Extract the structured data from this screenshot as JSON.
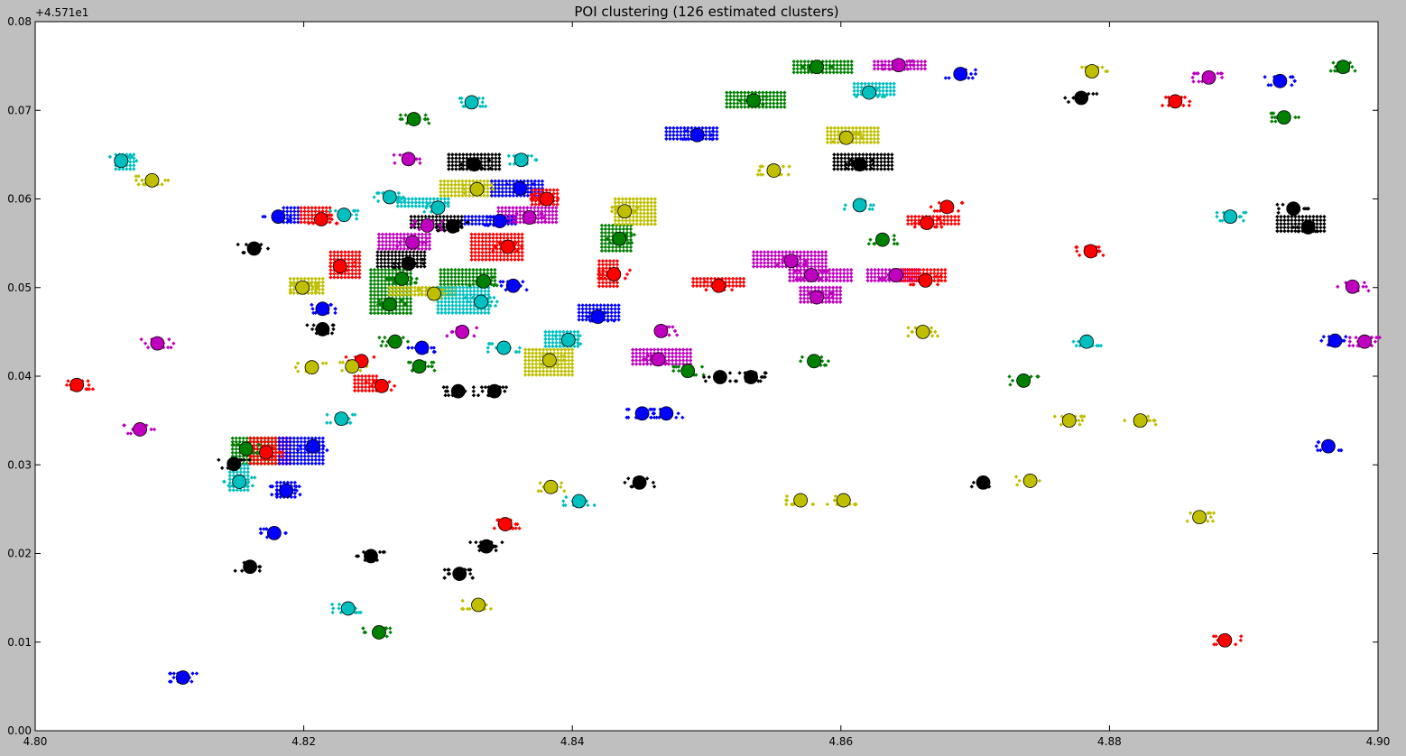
{
  "chart_data": {
    "type": "scatter",
    "title": "POI clustering (126 estimated clusters)",
    "xlabel": "",
    "ylabel": "",
    "y_offset_label": "+4.571e1",
    "xlim": [
      4.8,
      4.9
    ],
    "ylim": [
      0.0,
      0.08
    ],
    "x_ticks": [
      4.8,
      4.82,
      4.84,
      4.86,
      4.88,
      4.9
    ],
    "x_tick_labels": [
      "4.80",
      "4.82",
      "4.84",
      "4.86",
      "4.88",
      "4.90"
    ],
    "y_ticks": [
      0.0,
      0.01,
      0.02,
      0.03,
      0.04,
      0.05,
      0.06,
      0.07,
      0.08
    ],
    "y_tick_labels": [
      "0.00",
      "0.01",
      "0.02",
      "0.03",
      "0.04",
      "0.05",
      "0.06",
      "0.07",
      "0.08"
    ],
    "grid": false,
    "legend": "none",
    "colors": {
      "b": "#0000ff",
      "g": "#008000",
      "r": "#ff0000",
      "c": "#00bfbf",
      "m": "#bf00bf",
      "y": "#bfbf00",
      "k": "#000000"
    },
    "centers": [
      {
        "x": 4.8031,
        "y": 0.039,
        "c": "r"
      },
      {
        "x": 4.8064,
        "y": 0.0643,
        "c": "c"
      },
      {
        "x": 4.8078,
        "y": 0.034,
        "c": "m"
      },
      {
        "x": 4.8087,
        "y": 0.0621,
        "c": "y"
      },
      {
        "x": 4.8091,
        "y": 0.0437,
        "c": "m"
      },
      {
        "x": 4.811,
        "y": 0.006,
        "c": "b"
      },
      {
        "x": 4.8148,
        "y": 0.0301,
        "c": "k"
      },
      {
        "x": 4.8152,
        "y": 0.0281,
        "c": "c"
      },
      {
        "x": 4.8157,
        "y": 0.0318,
        "c": "g"
      },
      {
        "x": 4.816,
        "y": 0.0185,
        "c": "k"
      },
      {
        "x": 4.8163,
        "y": 0.0544,
        "c": "k"
      },
      {
        "x": 4.8172,
        "y": 0.0314,
        "c": "r"
      },
      {
        "x": 4.8178,
        "y": 0.0223,
        "c": "b"
      },
      {
        "x": 4.8187,
        "y": 0.0271,
        "c": "b"
      },
      {
        "x": 4.8181,
        "y": 0.058,
        "c": "b"
      },
      {
        "x": 4.8199,
        "y": 0.05,
        "c": "y"
      },
      {
        "x": 4.8207,
        "y": 0.0321,
        "c": "b"
      },
      {
        "x": 4.8206,
        "y": 0.041,
        "c": "y"
      },
      {
        "x": 4.8214,
        "y": 0.0453,
        "c": "k"
      },
      {
        "x": 4.8214,
        "y": 0.0476,
        "c": "b"
      },
      {
        "x": 4.8213,
        "y": 0.0577,
        "c": "r"
      },
      {
        "x": 4.8227,
        "y": 0.0524,
        "c": "r"
      },
      {
        "x": 4.8228,
        "y": 0.0352,
        "c": "c"
      },
      {
        "x": 4.823,
        "y": 0.0582,
        "c": "c"
      },
      {
        "x": 4.8233,
        "y": 0.0138,
        "c": "c"
      },
      {
        "x": 4.8243,
        "y": 0.0417,
        "c": "r"
      },
      {
        "x": 4.825,
        "y": 0.0197,
        "c": "k"
      },
      {
        "x": 4.8256,
        "y": 0.0111,
        "c": "g"
      },
      {
        "x": 4.8258,
        "y": 0.0389,
        "c": "r"
      },
      {
        "x": 4.8264,
        "y": 0.0481,
        "c": "g"
      },
      {
        "x": 4.8264,
        "y": 0.0602,
        "c": "c"
      },
      {
        "x": 4.8268,
        "y": 0.0439,
        "c": "g"
      },
      {
        "x": 4.8273,
        "y": 0.051,
        "c": "g"
      },
      {
        "x": 4.8278,
        "y": 0.0527,
        "c": "k"
      },
      {
        "x": 4.8278,
        "y": 0.0645,
        "c": "m"
      },
      {
        "x": 4.8281,
        "y": 0.0551,
        "c": "m"
      },
      {
        "x": 4.8282,
        "y": 0.069,
        "c": "g"
      },
      {
        "x": 4.8286,
        "y": 0.0411,
        "c": "g"
      },
      {
        "x": 4.8288,
        "y": 0.0432,
        "c": "b"
      },
      {
        "x": 4.8292,
        "y": 0.057,
        "c": "m"
      },
      {
        "x": 4.8297,
        "y": 0.0493,
        "c": "y"
      },
      {
        "x": 4.83,
        "y": 0.059,
        "c": "c"
      },
      {
        "x": 4.8311,
        "y": 0.0569,
        "c": "k"
      },
      {
        "x": 4.8316,
        "y": 0.0177,
        "c": "k"
      },
      {
        "x": 4.8318,
        "y": 0.045,
        "c": "m"
      },
      {
        "x": 4.8325,
        "y": 0.0709,
        "c": "c"
      },
      {
        "x": 4.8327,
        "y": 0.0639,
        "c": "k"
      },
      {
        "x": 4.8329,
        "y": 0.0611,
        "c": "y"
      },
      {
        "x": 4.833,
        "y": 0.0142,
        "c": "y"
      },
      {
        "x": 4.8332,
        "y": 0.0484,
        "c": "c"
      },
      {
        "x": 4.8334,
        "y": 0.0507,
        "c": "g"
      },
      {
        "x": 4.8336,
        "y": 0.0208,
        "c": "k"
      },
      {
        "x": 4.8342,
        "y": 0.0383,
        "c": "k"
      },
      {
        "x": 4.8346,
        "y": 0.0575,
        "c": "b"
      },
      {
        "x": 4.8349,
        "y": 0.0432,
        "c": "c"
      },
      {
        "x": 4.835,
        "y": 0.0233,
        "c": "r"
      },
      {
        "x": 4.8352,
        "y": 0.0546,
        "c": "r"
      },
      {
        "x": 4.8356,
        "y": 0.0502,
        "c": "b"
      },
      {
        "x": 4.8361,
        "y": 0.0612,
        "c": "b"
      },
      {
        "x": 4.8362,
        "y": 0.0644,
        "c": "c"
      },
      {
        "x": 4.8368,
        "y": 0.0579,
        "c": "m"
      },
      {
        "x": 4.8381,
        "y": 0.06,
        "c": "r"
      },
      {
        "x": 4.8383,
        "y": 0.0418,
        "c": "y"
      },
      {
        "x": 4.8384,
        "y": 0.0275,
        "c": "y"
      },
      {
        "x": 4.8397,
        "y": 0.0441,
        "c": "c"
      },
      {
        "x": 4.8405,
        "y": 0.0259,
        "c": "c"
      },
      {
        "x": 4.8419,
        "y": 0.0467,
        "c": "b"
      },
      {
        "x": 4.8431,
        "y": 0.0515,
        "c": "r"
      },
      {
        "x": 4.8435,
        "y": 0.0555,
        "c": "g"
      },
      {
        "x": 4.8439,
        "y": 0.0586,
        "c": "y"
      },
      {
        "x": 4.8452,
        "y": 0.0358,
        "c": "b"
      },
      {
        "x": 4.8464,
        "y": 0.0419,
        "c": "m"
      },
      {
        "x": 4.8466,
        "y": 0.0451,
        "c": "m"
      },
      {
        "x": 4.8486,
        "y": 0.0406,
        "c": "g"
      },
      {
        "x": 4.8493,
        "y": 0.0672,
        "c": "b"
      },
      {
        "x": 4.8509,
        "y": 0.0502,
        "c": "r"
      },
      {
        "x": 4.8533,
        "y": 0.0399,
        "c": "k"
      },
      {
        "x": 4.8535,
        "y": 0.0711,
        "c": "g"
      },
      {
        "x": 4.855,
        "y": 0.0632,
        "c": "y"
      },
      {
        "x": 4.8563,
        "y": 0.053,
        "c": "m"
      },
      {
        "x": 4.8578,
        "y": 0.0514,
        "c": "m"
      },
      {
        "x": 4.858,
        "y": 0.0417,
        "c": "g"
      },
      {
        "x": 4.8582,
        "y": 0.0489,
        "c": "m"
      },
      {
        "x": 4.8582,
        "y": 0.0749,
        "c": "g"
      },
      {
        "x": 4.8602,
        "y": 0.026,
        "c": "y"
      },
      {
        "x": 4.8604,
        "y": 0.0669,
        "c": "y"
      },
      {
        "x": 4.8614,
        "y": 0.0639,
        "c": "k"
      },
      {
        "x": 4.8614,
        "y": 0.0593,
        "c": "c"
      },
      {
        "x": 4.8621,
        "y": 0.072,
        "c": "c"
      },
      {
        "x": 4.8631,
        "y": 0.0554,
        "c": "g"
      },
      {
        "x": 4.8641,
        "y": 0.0514,
        "c": "m"
      },
      {
        "x": 4.8643,
        "y": 0.0751,
        "c": "m"
      },
      {
        "x": 4.8661,
        "y": 0.045,
        "c": "y"
      },
      {
        "x": 4.8663,
        "y": 0.0508,
        "c": "r"
      },
      {
        "x": 4.8664,
        "y": 0.0573,
        "c": "r"
      },
      {
        "x": 4.8679,
        "y": 0.0591,
        "c": "r"
      },
      {
        "x": 4.8689,
        "y": 0.0741,
        "c": "b"
      },
      {
        "x": 4.8706,
        "y": 0.028,
        "c": "k"
      },
      {
        "x": 4.8741,
        "y": 0.0282,
        "c": "y"
      },
      {
        "x": 4.8736,
        "y": 0.0395,
        "c": "g"
      },
      {
        "x": 4.8779,
        "y": 0.0714,
        "c": "k"
      },
      {
        "x": 4.8783,
        "y": 0.0439,
        "c": "c"
      },
      {
        "x": 4.8786,
        "y": 0.0541,
        "c": "r"
      },
      {
        "x": 4.8787,
        "y": 0.0744,
        "c": "y"
      },
      {
        "x": 4.8823,
        "y": 0.035,
        "c": "y"
      },
      {
        "x": 4.8849,
        "y": 0.071,
        "c": "r"
      },
      {
        "x": 4.8867,
        "y": 0.0241,
        "c": "y"
      },
      {
        "x": 4.8874,
        "y": 0.0737,
        "c": "m"
      },
      {
        "x": 4.8886,
        "y": 0.0102,
        "c": "r"
      },
      {
        "x": 4.889,
        "y": 0.058,
        "c": "c"
      },
      {
        "x": 4.8927,
        "y": 0.0733,
        "c": "b"
      },
      {
        "x": 4.893,
        "y": 0.0692,
        "c": "g"
      },
      {
        "x": 4.8937,
        "y": 0.0589,
        "c": "k"
      },
      {
        "x": 4.8948,
        "y": 0.0568,
        "c": "k"
      },
      {
        "x": 4.8963,
        "y": 0.0321,
        "c": "b"
      },
      {
        "x": 4.8974,
        "y": 0.0749,
        "c": "g"
      },
      {
        "x": 4.8981,
        "y": 0.0501,
        "c": "m"
      },
      {
        "x": 4.8968,
        "y": 0.044,
        "c": "b"
      },
      {
        "x": 4.899,
        "y": 0.0439,
        "c": "m"
      },
      {
        "x": 4.8236,
        "y": 0.0411,
        "c": "y"
      },
      {
        "x": 4.8315,
        "y": 0.0383,
        "c": "k"
      },
      {
        "x": 4.847,
        "y": 0.0358,
        "c": "b"
      },
      {
        "x": 4.851,
        "y": 0.0399,
        "c": "k"
      },
      {
        "x": 4.857,
        "y": 0.026,
        "c": "y"
      },
      {
        "x": 4.845,
        "y": 0.028,
        "c": "k"
      },
      {
        "x": 4.877,
        "y": 0.035,
        "c": "y"
      }
    ],
    "bands": [
      {
        "x0": 4.806,
        "x1": 4.8076,
        "y0": 0.063,
        "y1": 0.065,
        "c": "c"
      },
      {
        "x0": 4.8147,
        "x1": 4.818,
        "y0": 0.03,
        "y1": 0.033,
        "c": "g"
      },
      {
        "x0": 4.8145,
        "x1": 4.816,
        "y0": 0.027,
        "y1": 0.03,
        "c": "c"
      },
      {
        "x0": 4.816,
        "x1": 4.819,
        "y0": 0.03,
        "y1": 0.033,
        "c": "r"
      },
      {
        "x0": 4.8182,
        "x1": 4.8216,
        "y0": 0.03,
        "y1": 0.033,
        "c": "b"
      },
      {
        "x0": 4.818,
        "x1": 4.8196,
        "y0": 0.026,
        "y1": 0.028,
        "c": "b"
      },
      {
        "x0": 4.8185,
        "x1": 4.8198,
        "y0": 0.057,
        "y1": 0.059,
        "c": "b"
      },
      {
        "x0": 4.819,
        "x1": 4.8215,
        "y0": 0.049,
        "y1": 0.051,
        "c": "y"
      },
      {
        "x0": 4.822,
        "x1": 4.8242,
        "y0": 0.051,
        "y1": 0.054,
        "c": "r"
      },
      {
        "x0": 4.8198,
        "x1": 4.8222,
        "y0": 0.057,
        "y1": 0.059,
        "c": "r"
      },
      {
        "x0": 4.8238,
        "x1": 4.8256,
        "y0": 0.038,
        "y1": 0.04,
        "c": "r"
      },
      {
        "x0": 4.825,
        "x1": 4.8282,
        "y0": 0.047,
        "y1": 0.052,
        "c": "g"
      },
      {
        "x0": 4.8255,
        "x1": 4.829,
        "y0": 0.052,
        "y1": 0.054,
        "c": "k"
      },
      {
        "x0": 4.8256,
        "x1": 4.8294,
        "y0": 0.054,
        "y1": 0.056,
        "c": "m"
      },
      {
        "x0": 4.8264,
        "x1": 4.8314,
        "y0": 0.049,
        "y1": 0.05,
        "c": "y"
      },
      {
        "x0": 4.827,
        "x1": 4.8308,
        "y0": 0.059,
        "y1": 0.06,
        "c": "c"
      },
      {
        "x0": 4.828,
        "x1": 4.832,
        "y0": 0.0565,
        "y1": 0.058,
        "c": "k"
      },
      {
        "x0": 4.83,
        "x1": 4.834,
        "y0": 0.047,
        "y1": 0.05,
        "c": "c"
      },
      {
        "x0": 4.8302,
        "x1": 4.8345,
        "y0": 0.05,
        "y1": 0.052,
        "c": "g"
      },
      {
        "x0": 4.8302,
        "x1": 4.835,
        "y0": 0.06,
        "y1": 0.062,
        "c": "y"
      },
      {
        "x0": 4.8308,
        "x1": 4.8348,
        "y0": 0.063,
        "y1": 0.065,
        "c": "k"
      },
      {
        "x0": 4.832,
        "x1": 4.836,
        "y0": 0.057,
        "y1": 0.058,
        "c": "b"
      },
      {
        "x0": 4.8325,
        "x1": 4.8365,
        "y0": 0.053,
        "y1": 0.056,
        "c": "r"
      },
      {
        "x0": 4.834,
        "x1": 4.838,
        "y0": 0.06,
        "y1": 0.062,
        "c": "b"
      },
      {
        "x0": 4.8345,
        "x1": 4.839,
        "y0": 0.057,
        "y1": 0.059,
        "c": "m"
      },
      {
        "x0": 4.837,
        "x1": 4.839,
        "y0": 0.059,
        "y1": 0.061,
        "c": "r"
      },
      {
        "x0": 4.8365,
        "x1": 4.84,
        "y0": 0.04,
        "y1": 0.043,
        "c": "y"
      },
      {
        "x0": 4.838,
        "x1": 4.8405,
        "y0": 0.043,
        "y1": 0.045,
        "c": "c"
      },
      {
        "x0": 4.8405,
        "x1": 4.8435,
        "y0": 0.046,
        "y1": 0.048,
        "c": "b"
      },
      {
        "x0": 4.842,
        "x1": 4.8436,
        "y0": 0.05,
        "y1": 0.053,
        "c": "r"
      },
      {
        "x0": 4.8422,
        "x1": 4.8444,
        "y0": 0.054,
        "y1": 0.057,
        "c": "g"
      },
      {
        "x0": 4.8432,
        "x1": 4.8462,
        "y0": 0.057,
        "y1": 0.06,
        "c": "y"
      },
      {
        "x0": 4.8445,
        "x1": 4.849,
        "y0": 0.041,
        "y1": 0.043,
        "c": "m"
      },
      {
        "x0": 4.847,
        "x1": 4.851,
        "y0": 0.0665,
        "y1": 0.068,
        "c": "b"
      },
      {
        "x0": 4.849,
        "x1": 4.853,
        "y0": 0.05,
        "y1": 0.051,
        "c": "r"
      },
      {
        "x0": 4.8515,
        "x1": 4.856,
        "y0": 0.07,
        "y1": 0.072,
        "c": "g"
      },
      {
        "x0": 4.8535,
        "x1": 4.859,
        "y0": 0.052,
        "y1": 0.054,
        "c": "m"
      },
      {
        "x0": 4.8562,
        "x1": 4.861,
        "y0": 0.0505,
        "y1": 0.052,
        "c": "m"
      },
      {
        "x0": 4.857,
        "x1": 4.86,
        "y0": 0.048,
        "y1": 0.05,
        "c": "m"
      },
      {
        "x0": 4.8565,
        "x1": 4.861,
        "y0": 0.074,
        "y1": 0.0755,
        "c": "g"
      },
      {
        "x0": 4.859,
        "x1": 4.863,
        "y0": 0.066,
        "y1": 0.068,
        "c": "y"
      },
      {
        "x0": 4.8595,
        "x1": 4.864,
        "y0": 0.063,
        "y1": 0.065,
        "c": "k"
      },
      {
        "x0": 4.861,
        "x1": 4.864,
        "y0": 0.0715,
        "y1": 0.073,
        "c": "c"
      },
      {
        "x0": 4.862,
        "x1": 4.866,
        "y0": 0.0505,
        "y1": 0.052,
        "c": "m"
      },
      {
        "x0": 4.864,
        "x1": 4.868,
        "y0": 0.0505,
        "y1": 0.052,
        "c": "r"
      },
      {
        "x0": 4.865,
        "x1": 4.869,
        "y0": 0.057,
        "y1": 0.058,
        "c": "r"
      },
      {
        "x0": 4.8625,
        "x1": 4.8665,
        "y0": 0.0745,
        "y1": 0.0755,
        "c": "m"
      },
      {
        "x0": 4.8925,
        "x1": 4.896,
        "y0": 0.056,
        "y1": 0.058,
        "c": "k"
      }
    ]
  }
}
